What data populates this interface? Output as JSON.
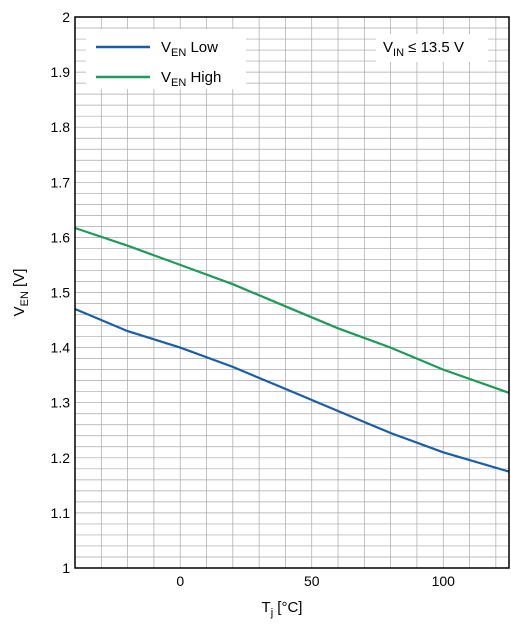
{
  "chart_data": {
    "type": "line",
    "xlabel": {
      "main": "T",
      "sub": "j",
      "unit": " [°C]"
    },
    "ylabel": {
      "main": "V",
      "sub": "EN",
      "unit": " [V]"
    },
    "xlim": [
      -40,
      125
    ],
    "ylim": [
      1,
      2
    ],
    "x_ticks": [
      0,
      50,
      100
    ],
    "y_ticks": [
      1,
      1.1,
      1.2,
      1.3,
      1.4,
      1.5,
      1.6,
      1.7,
      1.8,
      1.9,
      2
    ],
    "y_tick_labels": [
      "1",
      "1.1",
      "1.2",
      "1.3",
      "1.4",
      "1.5",
      "1.6",
      "1.7",
      "1.8",
      "1.9",
      "2"
    ],
    "x_tick_labels": [
      "0",
      "50",
      "100"
    ],
    "grid": true,
    "legend_position": "top-left",
    "annotation": {
      "main": "V",
      "sub": "IN",
      "rest": " ≤ 13.5 V"
    },
    "series": [
      {
        "name": {
          "main": "V",
          "sub": "EN",
          "rest": " Low"
        },
        "color": "#1a5ea8",
        "x": [
          -40,
          -20,
          0,
          20,
          40,
          60,
          80,
          100,
          125
        ],
        "y": [
          1.47,
          1.43,
          1.4,
          1.365,
          1.325,
          1.285,
          1.245,
          1.21,
          1.175
        ]
      },
      {
        "name": {
          "main": "V",
          "sub": "EN",
          "rest": " High"
        },
        "color": "#1e9a5a",
        "x": [
          -40,
          -20,
          0,
          20,
          40,
          60,
          80,
          100,
          125
        ],
        "y": [
          1.617,
          1.585,
          1.55,
          1.515,
          1.475,
          1.435,
          1.4,
          1.36,
          1.318
        ]
      }
    ]
  }
}
